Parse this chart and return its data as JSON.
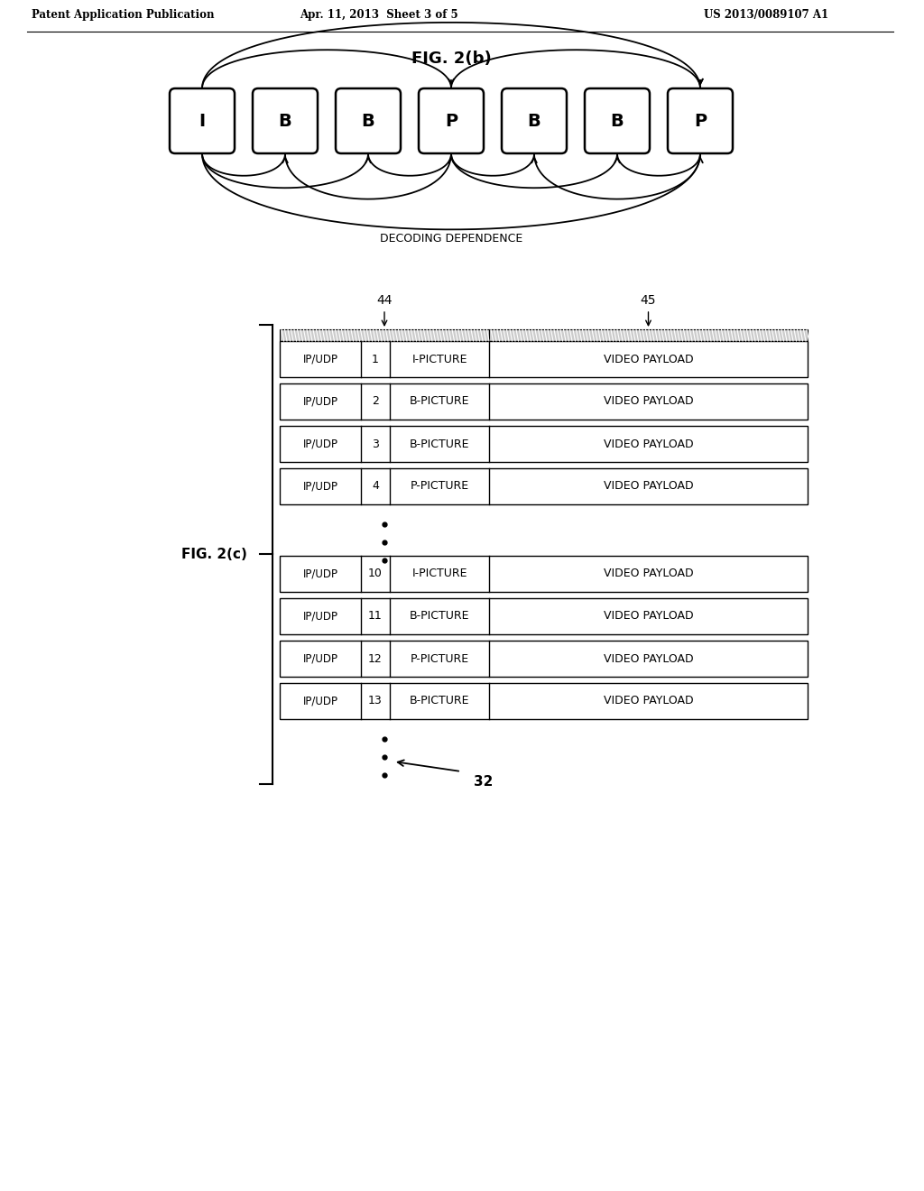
{
  "bg_color": "#ffffff",
  "header_text_left": "Patent Application Publication",
  "header_text_mid": "Apr. 11, 2013  Sheet 3 of 5",
  "header_text_right": "US 2013/0089107 A1",
  "fig_b_title": "FIG. 2(b)",
  "fig_c_label": "FIG. 2(c)",
  "frame_labels": [
    "I",
    "B",
    "B",
    "P",
    "B",
    "B",
    "P"
  ],
  "decoding_dependence_label": "DECODING DEPENDENCE",
  "label_44": "44",
  "label_45": "45",
  "label_32": "32",
  "rows_top": [
    {
      "col1": "IP/UDP",
      "col2": "1",
      "col3": "I-PICTURE",
      "col4": "VIDEO PAYLOAD"
    },
    {
      "col1": "IP/UDP",
      "col2": "2",
      "col3": "B-PICTURE",
      "col4": "VIDEO PAYLOAD"
    },
    {
      "col1": "IP/UDP",
      "col2": "3",
      "col3": "B-PICTURE",
      "col4": "VIDEO PAYLOAD"
    },
    {
      "col1": "IP/UDP",
      "col2": "4",
      "col3": "P-PICTURE",
      "col4": "VIDEO PAYLOAD"
    }
  ],
  "rows_bottom": [
    {
      "col1": "IP/UDP",
      "col2": "10",
      "col3": "I-PICTURE",
      "col4": "VIDEO PAYLOAD"
    },
    {
      "col1": "IP/UDP",
      "col2": "11",
      "col3": "B-PICTURE",
      "col4": "VIDEO PAYLOAD"
    },
    {
      "col1": "IP/UDP",
      "col2": "12",
      "col3": "P-PICTURE",
      "col4": "VIDEO PAYLOAD"
    },
    {
      "col1": "IP/UDP",
      "col2": "13",
      "col3": "B-PICTURE",
      "col4": "VIDEO PAYLOAD"
    }
  ]
}
